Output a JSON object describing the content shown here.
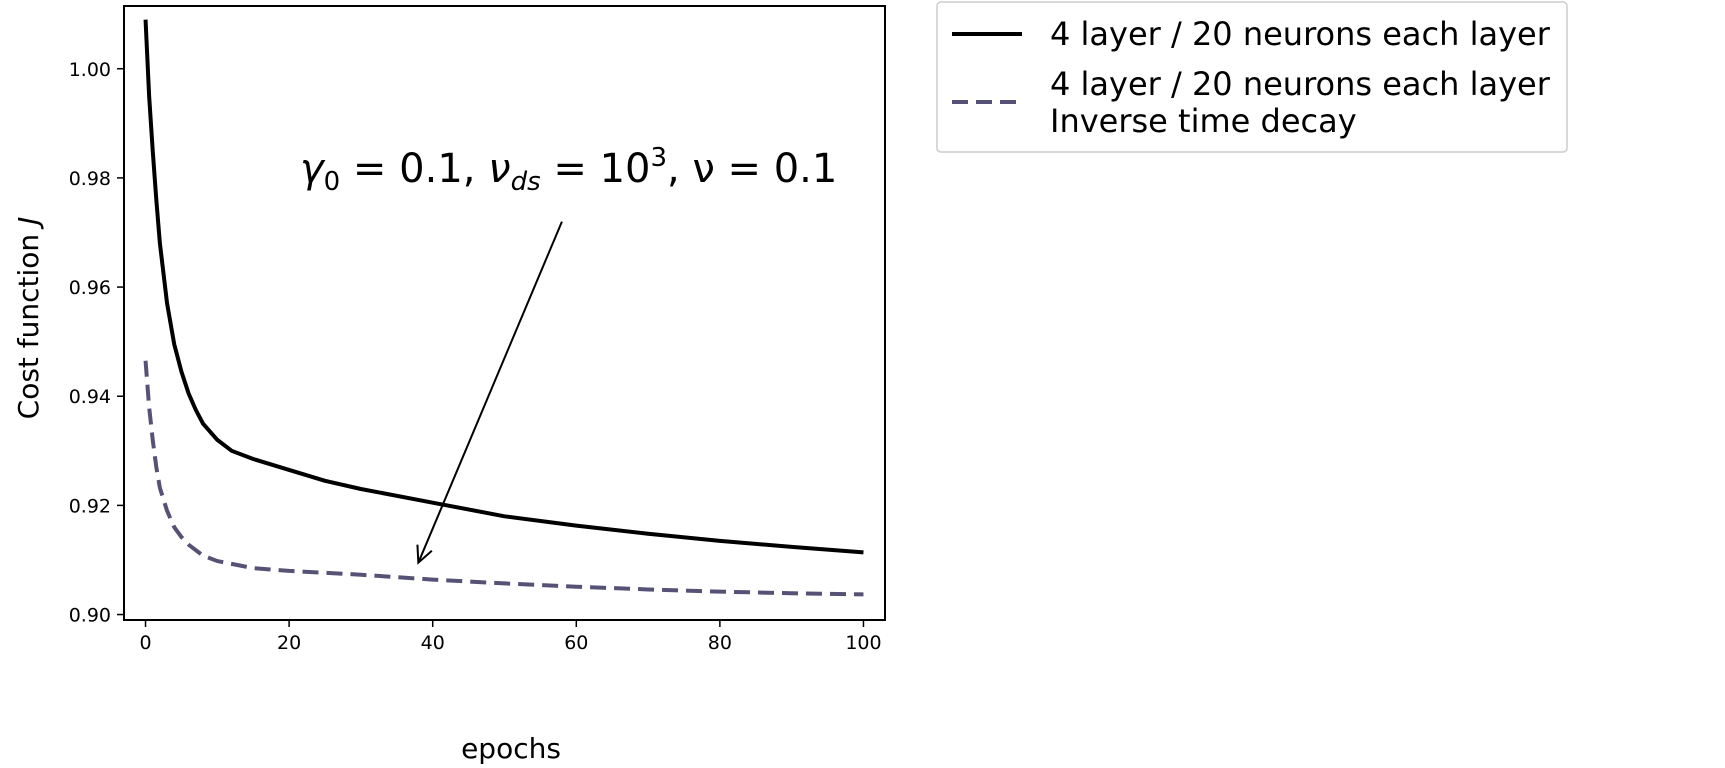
{
  "chart_data": {
    "type": "line",
    "xlabel": "epochs",
    "ylabel": "Cost function J",
    "xlim": [
      -3,
      103
    ],
    "ylim": [
      0.899,
      1.0115
    ],
    "xticks": [
      0,
      20,
      40,
      60,
      80,
      100
    ],
    "yticks": [
      0.9,
      0.92,
      0.94,
      0.96,
      0.98,
      1.0
    ],
    "xtick_labels": [
      "0",
      "20",
      "40",
      "60",
      "80",
      "100"
    ],
    "ytick_labels": [
      "0.90",
      "0.92",
      "0.94",
      "0.96",
      "0.98",
      "1.00"
    ],
    "grid": false,
    "legend_position": "outside-right-top",
    "series": [
      {
        "name": "4 layer / 20 neurons each layer",
        "color": "#000000",
        "dash": "solid",
        "x": [
          0,
          0.5,
          1,
          1.5,
          2,
          3,
          4,
          5,
          6,
          7,
          8,
          10,
          12,
          15,
          20,
          25,
          30,
          40,
          50,
          60,
          70,
          80,
          90,
          100
        ],
        "y": [
          1.009,
          0.995,
          0.985,
          0.976,
          0.968,
          0.957,
          0.9495,
          0.9445,
          0.9405,
          0.9375,
          0.935,
          0.932,
          0.93,
          0.9285,
          0.9265,
          0.9245,
          0.923,
          0.9205,
          0.918,
          0.9163,
          0.9148,
          0.9135,
          0.9124,
          0.9114
        ]
      },
      {
        "name": "4 layer / 20 neurons each layer\nInverse time decay",
        "color": "#555275",
        "dash": "dashed",
        "x": [
          0,
          0.5,
          1,
          1.5,
          2,
          3,
          4,
          5,
          6,
          8,
          10,
          15,
          20,
          30,
          40,
          50,
          60,
          70,
          80,
          90,
          100
        ],
        "y": [
          0.9465,
          0.938,
          0.932,
          0.927,
          0.9232,
          0.919,
          0.916,
          0.9142,
          0.9128,
          0.9108,
          0.9098,
          0.9085,
          0.908,
          0.9073,
          0.9064,
          0.9057,
          0.9051,
          0.9046,
          0.9042,
          0.9039,
          0.9037
        ]
      }
    ],
    "annotation": {
      "text": "γ0 = 0.1, νds = 10^3, ν = 0.1",
      "arrow_tail": [
        58,
        0.972
      ],
      "arrow_head": [
        38,
        0.9095
      ]
    }
  },
  "legend": {
    "entries": [
      {
        "lines": [
          "4 layer / 20 neurons each layer"
        ]
      },
      {
        "lines": [
          "4 layer / 20 neurons each layer",
          "Inverse time decay"
        ]
      }
    ]
  },
  "annotation_parts": {
    "gamma": "γ",
    "gamma_sub": "0",
    "part1": " = 0.1, ",
    "nu": "ν",
    "nu_sub": "ds",
    "part2": " = 10",
    "exp": "3",
    "part3": ", ν = 0.1"
  },
  "ylabel_parts": {
    "main": "Cost function ",
    "italic": "J"
  }
}
